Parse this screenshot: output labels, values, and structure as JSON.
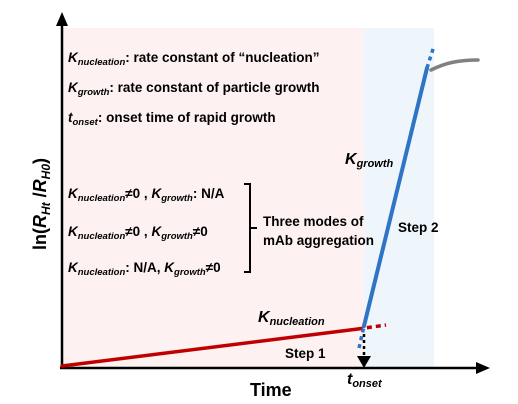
{
  "legend": {
    "k_nucleation_def": {
      "symbol": "K",
      "sub": "nucleation",
      "text": ": rate constant of “nucleation”"
    },
    "k_growth_def": {
      "symbol": "K",
      "sub": "growth",
      "text": ": rate constant of particle growth"
    },
    "t_onset_def": {
      "symbol": "t",
      "sub": "onset",
      "text": ": onset time of rapid growth"
    }
  },
  "modes": {
    "row1": {
      "a_sym": "K",
      "a_sub": "nucleation",
      "a_rel": "≠0 , ",
      "b_sym": "K",
      "b_sub": "growth",
      "b_rel": ": N/A"
    },
    "row2": {
      "a_sym": "K",
      "a_sub": "nucleation",
      "a_rel": "≠0 , ",
      "b_sym": "K",
      "b_sub": "growth",
      "b_rel": "≠0"
    },
    "row3": {
      "a_sym": "K",
      "a_sub": "nucleation",
      "a_rel": ": N/A, ",
      "b_sym": "K",
      "b_sub": "growth",
      "b_rel": "≠0"
    },
    "label_line1": "Three modes of",
    "label_line2": "mAb aggregation"
  },
  "axes": {
    "y_label": {
      "pre": "ln(",
      "r1": "R",
      "r1_sub": "Ht",
      "slash": " /",
      "r2": "R",
      "r2_sub": "H0",
      "post": ")"
    },
    "x_label": "Time"
  },
  "curve_labels": {
    "k_growth": {
      "symbol": "K",
      "sub": "growth"
    },
    "k_nucleation": {
      "symbol": "K",
      "sub": "nucleation"
    },
    "t_onset": {
      "symbol": "t",
      "sub": "onset"
    }
  },
  "steps": {
    "step1": "Step 1",
    "step2": "Step 2"
  },
  "colors": {
    "region1": "#fdf1f1",
    "region2": "#eef5fb",
    "nucleation_line": "#c00000",
    "growth_line": "#2e75c5",
    "plateau": "#808080",
    "axis": "#000000"
  }
}
